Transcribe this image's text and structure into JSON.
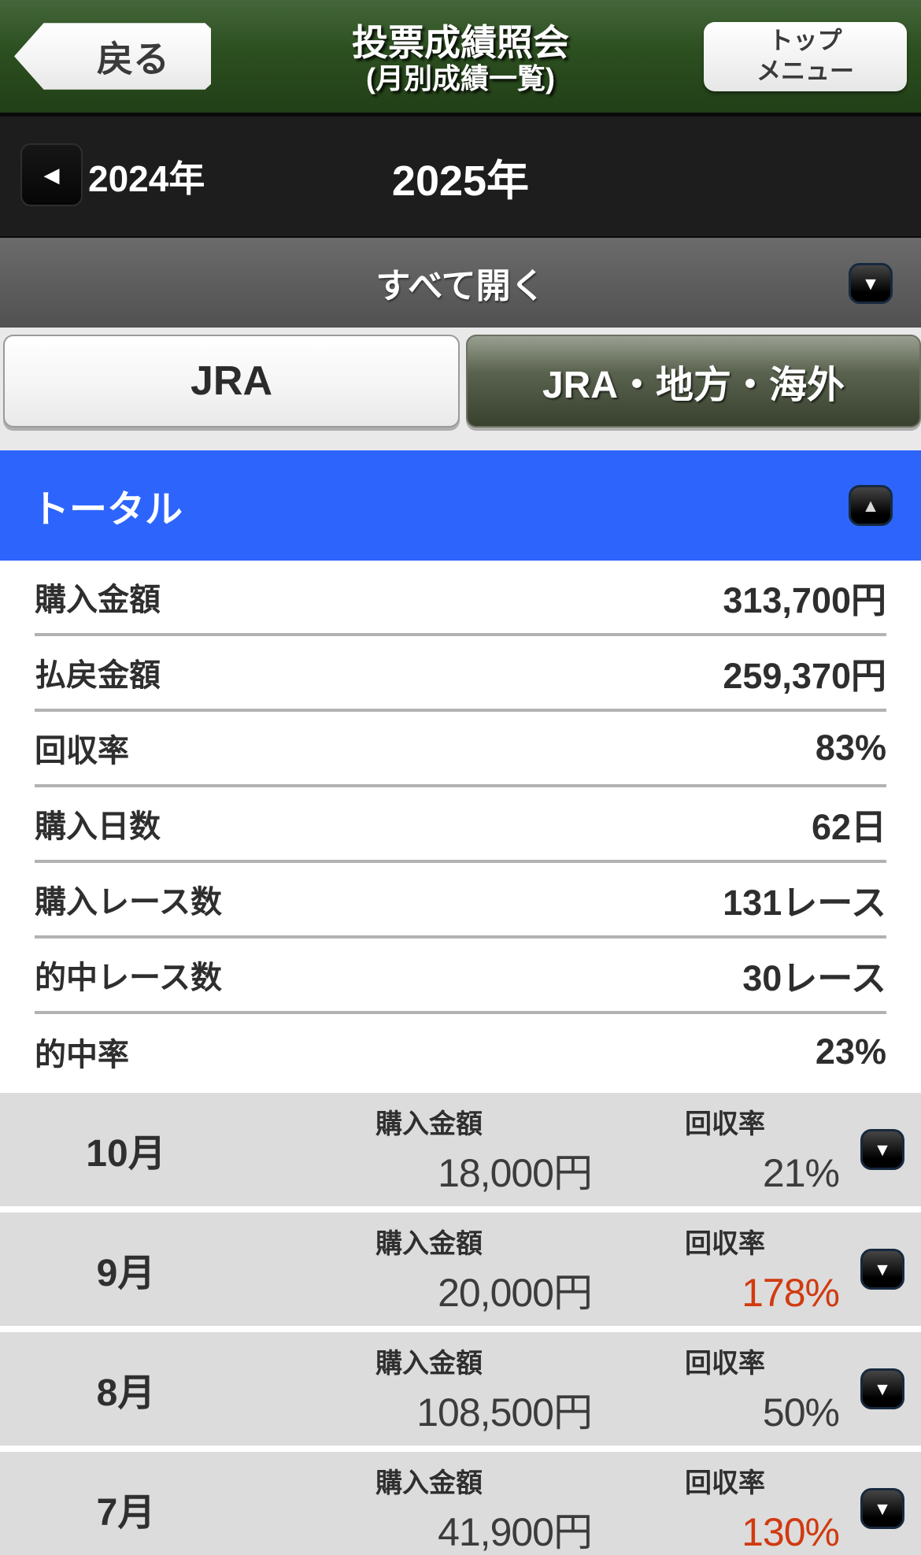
{
  "header": {
    "back_label": "戻る",
    "title": "投票成績照会",
    "subtitle": "(月別成績一覧)",
    "menu_label": "トップ\nメニュー"
  },
  "year_selector": {
    "prev_icon": "left-triangle",
    "prev_icon_glyph": "◀",
    "prev_year": "2024年",
    "current_year": "2025年"
  },
  "expand_bar": {
    "label": "すべて開く",
    "icon": "down-triangle",
    "icon_glyph": "▼"
  },
  "tabs": [
    {
      "label": "JRA",
      "active": true
    },
    {
      "label": "JRA・地方・海外",
      "active": false
    }
  ],
  "total_section": {
    "title": "トータル",
    "collapse_icon": "up-triangle",
    "collapse_icon_glyph": "▲",
    "rows": [
      {
        "label": "購入金額",
        "value": "313,700円"
      },
      {
        "label": "払戻金額",
        "value": "259,370円"
      },
      {
        "label": "回収率",
        "value": "83%"
      },
      {
        "label": "購入日数",
        "value": "62日"
      },
      {
        "label": "購入レース数",
        "value": "131レース"
      },
      {
        "label": "的中レース数",
        "value": "30レース"
      },
      {
        "label": "的中率",
        "value": "23%"
      }
    ]
  },
  "months": {
    "purchase_label": "購入金額",
    "recovery_label": "回収率",
    "expand_icon": "down-triangle",
    "expand_icon_glyph": "▼",
    "rows": [
      {
        "month": "10月",
        "purchase": "18,000円",
        "recovery": "21%",
        "recovery_highlight": false
      },
      {
        "month": "9月",
        "purchase": "20,000円",
        "recovery": "178%",
        "recovery_highlight": true
      },
      {
        "month": "8月",
        "purchase": "108,500円",
        "recovery": "50%",
        "recovery_highlight": false
      },
      {
        "month": "7月",
        "purchase": "41,900円",
        "recovery": "130%",
        "recovery_highlight": true
      }
    ]
  },
  "colors": {
    "header_green": "#2c4f20",
    "year_bar_dark": "#1d1d1d",
    "expand_bar_gray": "#5e5e5e",
    "accent_blue": "#2d65fc",
    "month_row_gray": "#dcdcdc",
    "highlight_red": "#d13a10",
    "text_dark": "#2e2e2e"
  }
}
